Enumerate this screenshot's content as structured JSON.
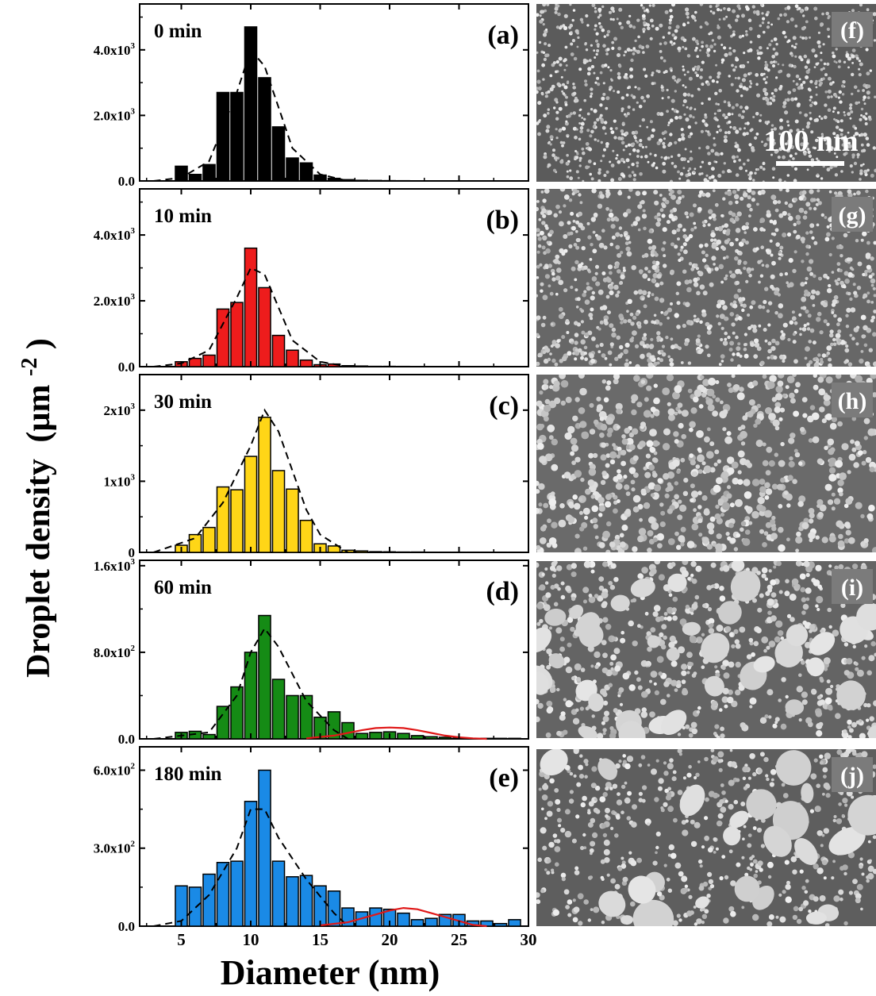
{
  "figure": {
    "ylabel": "Droplet density",
    "ylabel_unit": "(µm",
    "ylabel_exp": "-2",
    "ylabel_close": ")",
    "xlabel": "Diameter (nm)",
    "scale_bar_label": "100 nm"
  },
  "chart_data": [
    {
      "type": "bar",
      "panel_label": "(a)",
      "time_label": "0 min",
      "bar_color": "#000000",
      "ylim": [
        0,
        5400
      ],
      "yticks": [
        0,
        2000,
        4000
      ],
      "ytick_labels": [
        {
          "m": "0.0",
          "e": ""
        },
        {
          "m": "2.0x10",
          "e": "3"
        },
        {
          "m": "4.0x10",
          "e": "3"
        }
      ],
      "xlim": [
        2,
        30
      ],
      "x": [
        5,
        6,
        7,
        8,
        9,
        10,
        11,
        12,
        13,
        14,
        15,
        16,
        17,
        18,
        19,
        20,
        21,
        22,
        23,
        24,
        25,
        26,
        27,
        28,
        29
      ],
      "values": [
        450,
        200,
        500,
        2700,
        2700,
        4700,
        3150,
        1650,
        700,
        550,
        180,
        80,
        40,
        20,
        15,
        10,
        8,
        5,
        5,
        5,
        5,
        3,
        3,
        3,
        3
      ],
      "fit_dashed": [
        [
          3,
          0
        ],
        [
          5,
          100
        ],
        [
          7,
          600
        ],
        [
          9,
          2700
        ],
        [
          10,
          4000
        ],
        [
          11,
          3500
        ],
        [
          13,
          1000
        ],
        [
          15,
          200
        ],
        [
          17,
          0
        ]
      ],
      "fit_red": []
    },
    {
      "type": "bar",
      "panel_label": "(b)",
      "time_label": "10 min",
      "bar_color": "#ee1c1c",
      "ylim": [
        0,
        5400
      ],
      "yticks": [
        0,
        2000,
        4000
      ],
      "ytick_labels": [
        {
          "m": "0.0",
          "e": ""
        },
        {
          "m": "2.0x10",
          "e": "3"
        },
        {
          "m": "4.0x10",
          "e": "3"
        }
      ],
      "xlim": [
        2,
        30
      ],
      "x": [
        5,
        6,
        7,
        8,
        9,
        10,
        11,
        12,
        13,
        14,
        15,
        16,
        17,
        18,
        19,
        20,
        21,
        22,
        23,
        24,
        25,
        26,
        27,
        28,
        29
      ],
      "values": [
        150,
        250,
        350,
        1750,
        1950,
        3600,
        2400,
        950,
        500,
        200,
        60,
        80,
        30,
        20,
        10,
        10,
        8,
        5,
        5,
        5,
        5,
        3,
        3,
        3,
        3
      ],
      "fit_dashed": [
        [
          3,
          0
        ],
        [
          5,
          100
        ],
        [
          7,
          500
        ],
        [
          9,
          2100
        ],
        [
          10,
          3000
        ],
        [
          11,
          2800
        ],
        [
          13,
          800
        ],
        [
          15,
          150
        ],
        [
          17,
          0
        ]
      ],
      "fit_red": []
    },
    {
      "type": "bar",
      "panel_label": "(c)",
      "time_label": "30 min",
      "bar_color": "#ffd617",
      "ylim": [
        0,
        2500
      ],
      "yticks": [
        0,
        1000,
        2000
      ],
      "ytick_labels": [
        {
          "m": "0",
          "e": ""
        },
        {
          "m": "1x10",
          "e": "3"
        },
        {
          "m": "2x10",
          "e": "3"
        }
      ],
      "xlim": [
        2,
        30
      ],
      "x": [
        5,
        6,
        7,
        8,
        9,
        10,
        11,
        12,
        13,
        14,
        15,
        16,
        17,
        18,
        19,
        20,
        21,
        22,
        23,
        24,
        25,
        26,
        27,
        28,
        29
      ],
      "values": [
        100,
        250,
        350,
        920,
        880,
        1350,
        1900,
        1150,
        890,
        450,
        120,
        90,
        30,
        20,
        10,
        8,
        5,
        5,
        3,
        3,
        3,
        3,
        3,
        3,
        3
      ],
      "fit_dashed": [
        [
          3,
          0
        ],
        [
          6,
          200
        ],
        [
          8,
          700
        ],
        [
          10,
          1500
        ],
        [
          11,
          2000
        ],
        [
          12,
          1700
        ],
        [
          14,
          600
        ],
        [
          15,
          250
        ],
        [
          17,
          0
        ]
      ],
      "fit_red": []
    },
    {
      "type": "bar",
      "panel_label": "(d)",
      "time_label": "60 min",
      "bar_color": "#158b15",
      "ylim": [
        0,
        1650
      ],
      "yticks": [
        0,
        800,
        1600
      ],
      "ytick_labels": [
        {
          "m": "0.0",
          "e": ""
        },
        {
          "m": "8.0x10",
          "e": "2"
        },
        {
          "m": "1.6x10",
          "e": "3"
        }
      ],
      "xlim": [
        2,
        30
      ],
      "x": [
        5,
        6,
        7,
        8,
        9,
        10,
        11,
        12,
        13,
        14,
        15,
        16,
        17,
        18,
        19,
        20,
        21,
        22,
        23,
        24,
        25,
        26,
        27,
        28,
        29
      ],
      "values": [
        60,
        70,
        40,
        300,
        480,
        800,
        1140,
        550,
        400,
        400,
        200,
        250,
        150,
        50,
        60,
        65,
        50,
        30,
        20,
        15,
        8,
        5,
        5,
        5,
        5
      ],
      "fit_dashed": [
        [
          3,
          0
        ],
        [
          7,
          60
        ],
        [
          9,
          400
        ],
        [
          10,
          800
        ],
        [
          11,
          1020
        ],
        [
          12,
          850
        ],
        [
          14,
          350
        ],
        [
          16,
          80
        ],
        [
          17,
          0
        ]
      ],
      "fit_red": [
        [
          14,
          5
        ],
        [
          16,
          30
        ],
        [
          17,
          55
        ],
        [
          18,
          80
        ],
        [
          19,
          100
        ],
        [
          20,
          105
        ],
        [
          21,
          100
        ],
        [
          22,
          80
        ],
        [
          23,
          55
        ],
        [
          24,
          30
        ],
        [
          25,
          15
        ],
        [
          26,
          5
        ],
        [
          27,
          0
        ]
      ]
    },
    {
      "type": "bar",
      "panel_label": "(e)",
      "time_label": "180 min",
      "bar_color": "#1a8ae6",
      "ylim": [
        0,
        690
      ],
      "yticks": [
        0,
        300,
        600
      ],
      "ytick_labels": [
        {
          "m": "0.0",
          "e": ""
        },
        {
          "m": "3.0x10",
          "e": "2"
        },
        {
          "m": "6.0x10",
          "e": "2"
        }
      ],
      "xlim": [
        2,
        30
      ],
      "x": [
        5,
        6,
        7,
        8,
        9,
        10,
        11,
        12,
        13,
        14,
        15,
        16,
        17,
        18,
        19,
        20,
        21,
        22,
        23,
        24,
        25,
        26,
        27,
        28,
        29
      ],
      "values": [
        155,
        150,
        200,
        245,
        250,
        480,
        600,
        250,
        190,
        195,
        155,
        135,
        70,
        55,
        70,
        65,
        50,
        25,
        30,
        45,
        45,
        20,
        20,
        10,
        25
      ],
      "fit_dashed": [
        [
          3,
          0
        ],
        [
          5,
          20
        ],
        [
          7,
          120
        ],
        [
          9,
          300
        ],
        [
          10,
          450
        ],
        [
          11,
          450
        ],
        [
          12,
          340
        ],
        [
          14,
          180
        ],
        [
          16,
          50
        ],
        [
          17,
          0
        ]
      ],
      "fit_red": [
        [
          15,
          3
        ],
        [
          17,
          15
        ],
        [
          18,
          30
        ],
        [
          19,
          45
        ],
        [
          20,
          60
        ],
        [
          21,
          70
        ],
        [
          22,
          65
        ],
        [
          23,
          50
        ],
        [
          24,
          35
        ],
        [
          25,
          20
        ],
        [
          26,
          5
        ],
        [
          27,
          0
        ]
      ]
    }
  ],
  "sem_panels": [
    {
      "label": "(f)",
      "brightness": 0.35,
      "dense": true
    },
    {
      "label": "(g)",
      "brightness": 0.55,
      "dense": true
    },
    {
      "label": "(h)",
      "brightness": 0.6,
      "dense": false
    },
    {
      "label": "(i)",
      "brightness": 0.5,
      "dense": false
    },
    {
      "label": "(j)",
      "brightness": 0.4,
      "dense": false
    }
  ]
}
